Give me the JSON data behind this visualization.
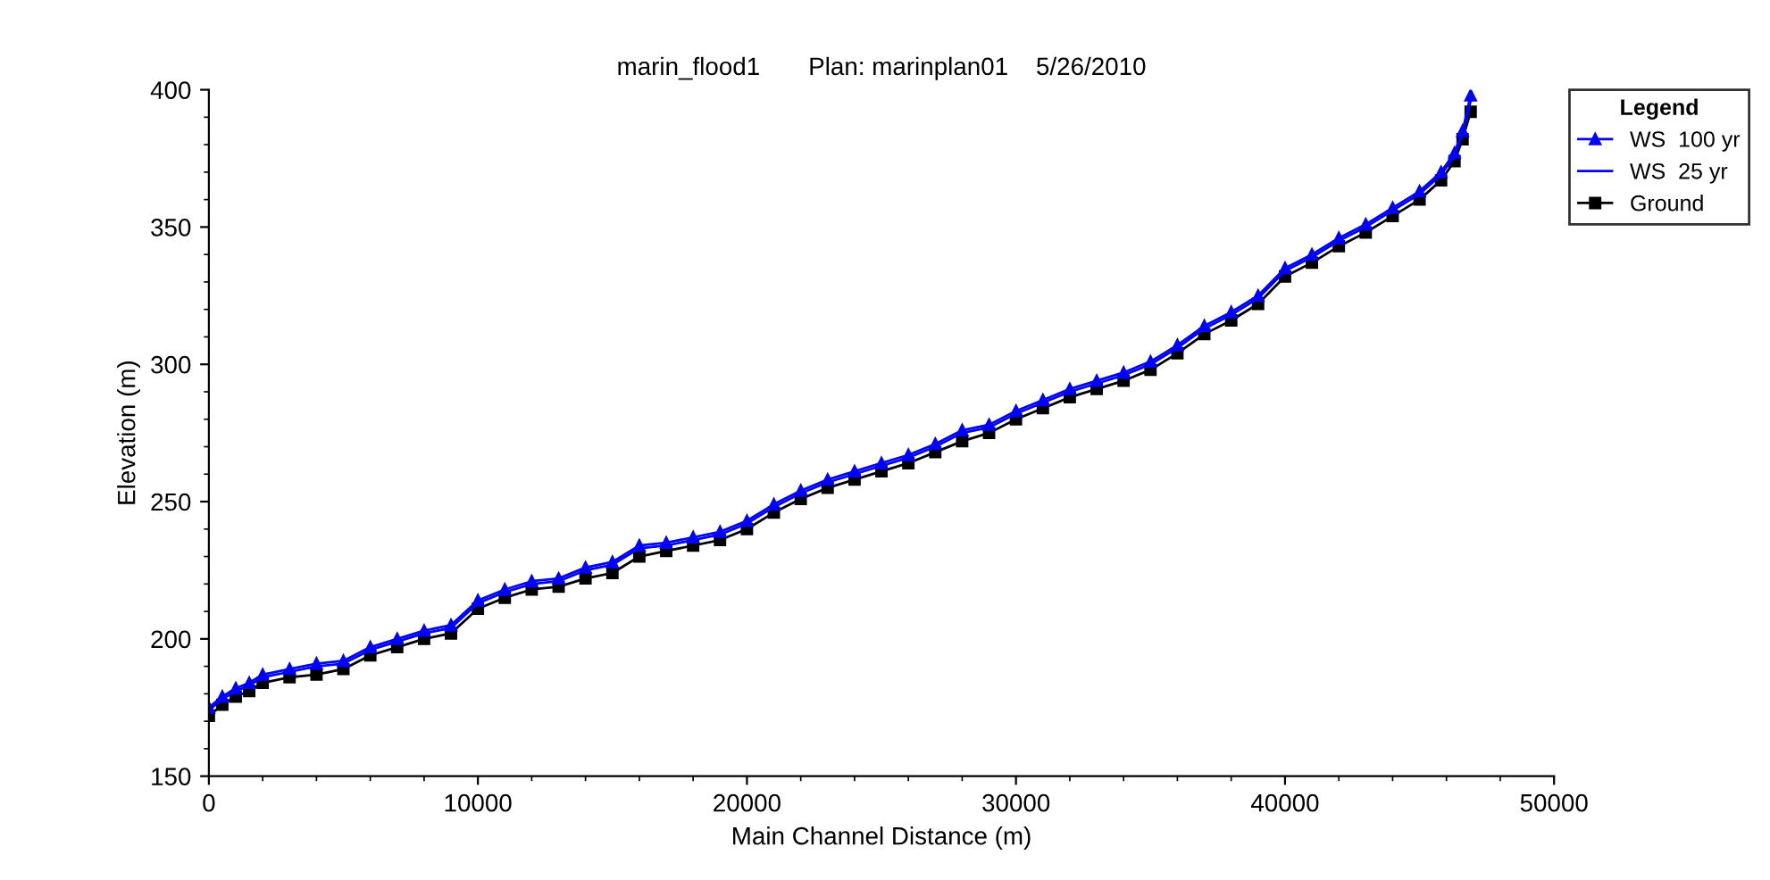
{
  "chart_data": {
    "type": "line",
    "title": "marin_flood1       Plan: marinplan01    5/26/2010",
    "xlabel": "Main Channel Distance (m)",
    "ylabel": "Elevation (m)",
    "legend_title": "Legend",
    "legend": "right",
    "grid": false,
    "x": [
      0,
      500,
      1000,
      1500,
      2000,
      3000,
      4000,
      5000,
      6000,
      7000,
      8000,
      9000,
      10000,
      11000,
      12000,
      13000,
      14000,
      15000,
      16000,
      17000,
      18000,
      19000,
      20000,
      21000,
      22000,
      23000,
      24000,
      25000,
      26000,
      27000,
      28000,
      29000,
      30000,
      31000,
      32000,
      33000,
      34000,
      35000,
      36000,
      37000,
      38000,
      39000,
      40000,
      41000,
      42000,
      43000,
      44000,
      45000,
      45800,
      46300,
      46600,
      46900
    ],
    "xlim": [
      0,
      50000
    ],
    "xticks": [
      0,
      10000,
      20000,
      30000,
      40000,
      50000
    ],
    "ylim": [
      150,
      400
    ],
    "yticks": [
      150,
      200,
      250,
      300,
      350,
      400
    ],
    "series": [
      {
        "name": "WS  100 yr",
        "color": "#0000ff",
        "marker": "triangle",
        "values": [
          175,
          179,
          182,
          184,
          187,
          189,
          191,
          192,
          197,
          200,
          203,
          205,
          214,
          218,
          221,
          222,
          226,
          228,
          234,
          235,
          237,
          239,
          243,
          249,
          254,
          258,
          261,
          264,
          267,
          271,
          276,
          278,
          283,
          287,
          291,
          294,
          297,
          301,
          307,
          314,
          319,
          325,
          335,
          340,
          346,
          351,
          357,
          363,
          370,
          377,
          385,
          398
        ]
      },
      {
        "name": "WS  25 yr",
        "color": "#0000ff",
        "marker": "none",
        "values": [
          174,
          178,
          181,
          183,
          186,
          188,
          190,
          191,
          196,
          199,
          202,
          204,
          213,
          217,
          220,
          221,
          225,
          227,
          233,
          234,
          236,
          238,
          242,
          248,
          253,
          257,
          260,
          263,
          266,
          270,
          275,
          277,
          282,
          286,
          290,
          293,
          296,
          300,
          306,
          313,
          318,
          324,
          334,
          339,
          345,
          350,
          356,
          362,
          369,
          376,
          384,
          396
        ]
      },
      {
        "name": "Ground",
        "color": "#000000",
        "marker": "square",
        "values": [
          172,
          176,
          179,
          181,
          184,
          186,
          187,
          189,
          194,
          197,
          200,
          202,
          211,
          215,
          218,
          219,
          222,
          224,
          230,
          232,
          234,
          236,
          240,
          246,
          251,
          255,
          258,
          261,
          264,
          268,
          272,
          275,
          280,
          284,
          288,
          291,
          294,
          298,
          304,
          311,
          316,
          322,
          332,
          337,
          343,
          348,
          354,
          360,
          367,
          374,
          382,
          392
        ]
      }
    ]
  }
}
